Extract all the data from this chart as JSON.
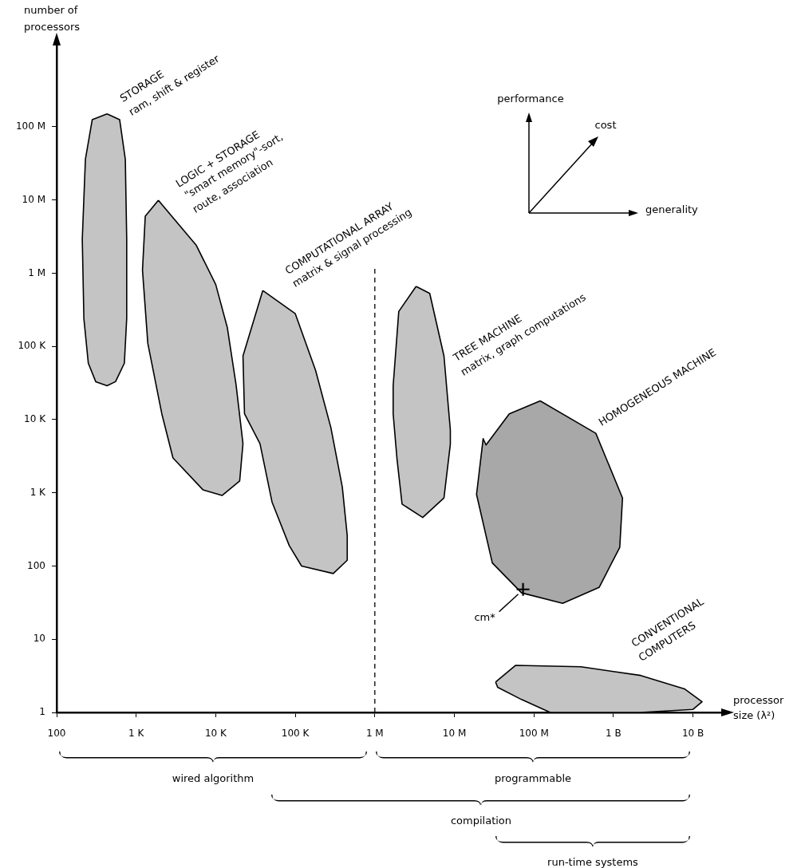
{
  "chart_data": {
    "type": "area",
    "xlabel": "processor size (λ²)",
    "ylabel": "number of processors",
    "log": "xy",
    "grid": false,
    "xlim": [
      100,
      26000000000
    ],
    "ylim": [
      1,
      1500000000
    ],
    "xticks": [
      100,
      {
        "value": 1000,
        "label": "1 K"
      },
      {
        "value": 10000,
        "label": "10 K"
      },
      {
        "value": 100000,
        "label": "100 K"
      },
      {
        "value": 1000000,
        "label": "1 M"
      },
      {
        "value": 10000000,
        "label": "10 M"
      },
      {
        "value": 100000000,
        "label": "100 M"
      },
      {
        "value": 1000000000,
        "label": "1 B"
      },
      {
        "value": 10000000000,
        "label": "10 B"
      }
    ],
    "yticks": [
      1,
      10,
      100,
      {
        "value": 1000,
        "label": "1 K"
      },
      {
        "value": 10000,
        "label": "10 K"
      },
      {
        "value": 100000,
        "label": "100 K"
      },
      {
        "value": 1000000,
        "label": "1 M"
      },
      {
        "value": 10000000,
        "label": "10 M"
      },
      {
        "value": 100000000,
        "label": "100 M"
      }
    ],
    "series": [
      {
        "color": "#c4c4c4",
        "x": [
          430,
          620,
          730,
          760,
          760,
          710,
          550,
          430,
          310,
          250,
          220,
          210,
          230,
          280
        ],
        "values": [
          150000000,
          125000000,
          36000000,
          2900000,
          240000,
          59000,
          33000,
          29000,
          33000,
          59000,
          240000,
          2900000,
          36000000,
          125000000
        ]
      },
      {
        "color": "#c4c4c4",
        "x": [
          1900,
          5700,
          10000,
          14000,
          18000,
          22000,
          20000,
          12000,
          6900,
          2900,
          2100,
          1400,
          1200,
          1300
        ],
        "values": [
          9900000,
          2400000,
          700000,
          180000,
          30000,
          4700,
          1450,
          920,
          1100,
          3000,
          12000,
          110000,
          1100000,
          6000000
        ]
      },
      {
        "color": "#c4c4c4",
        "x": [
          39000,
          100000,
          180000,
          280000,
          390000,
          450000,
          450000,
          300000,
          120000,
          84000,
          51000,
          36000,
          23000,
          22000
        ],
        "values": [
          580000,
          280000,
          47000,
          7800,
          1200,
          260,
          120,
          79,
          100,
          190,
          750,
          4700,
          12000,
          74000
        ]
      },
      {
        "color": "#c4c4c4",
        "x": [
          3300000,
          4900000,
          7400000,
          8900000,
          8900000,
          7400000,
          4000000,
          2200000,
          1900000,
          1700000,
          1700000,
          2000000
        ],
        "values": [
          660000,
          530000,
          74000,
          7200,
          4600,
          850,
          460,
          700,
          2900,
          12000,
          29000,
          300000
        ]
      },
      {
        "color": "#a8a8a8",
        "x": [
          120000000,
          600000000,
          1300000000,
          1200000000,
          660000000,
          230000000,
          70000000,
          30000000,
          19000000,
          23000000,
          25000000,
          49000000
        ],
        "values": [
          18000,
          6500,
          850,
          180,
          51,
          31,
          43,
          110,
          950,
          5500,
          4500,
          12000
        ]
      },
      {
        "color": "#c4c4c4",
        "x": [
          33000000,
          59000000,
          390000000,
          2200000000,
          7800000000,
          13000000000,
          10000000000,
          2200000000,
          160000000,
          70000000,
          35000000
        ],
        "values": [
          2.6,
          4.4,
          4.2,
          3.2,
          2.1,
          1.4,
          1.1,
          1,
          1,
          1.5,
          2.2
        ]
      },
      {
        "type": "line",
        "color": "#000000",
        "line_style": "dashed",
        "marker": "none",
        "x": [
          1000000,
          1000000
        ],
        "values": [
          1,
          1200000
        ]
      },
      {
        "type": "scatter",
        "name": "cm*",
        "color": "#000000",
        "marker": "cross",
        "x": [
          73000000
        ],
        "values": [
          48
        ]
      }
    ],
    "annotations": [
      "STORAGE",
      "ram, shift & register",
      "LOGIC + STORAGE",
      "\"smart memory\"-sort,",
      "route, association",
      "COMPUTATIONAL ARRAY",
      "matrix & signal processing",
      "TREE MACHINE",
      "matrix, graph computations",
      "HOMOGENEOUS MACHINE",
      "CONVENTIONAL",
      "COMPUTERS",
      "performance",
      "cost",
      "generality",
      "wired algorithm",
      "programmable",
      "compilation",
      "run-time systems"
    ]
  }
}
